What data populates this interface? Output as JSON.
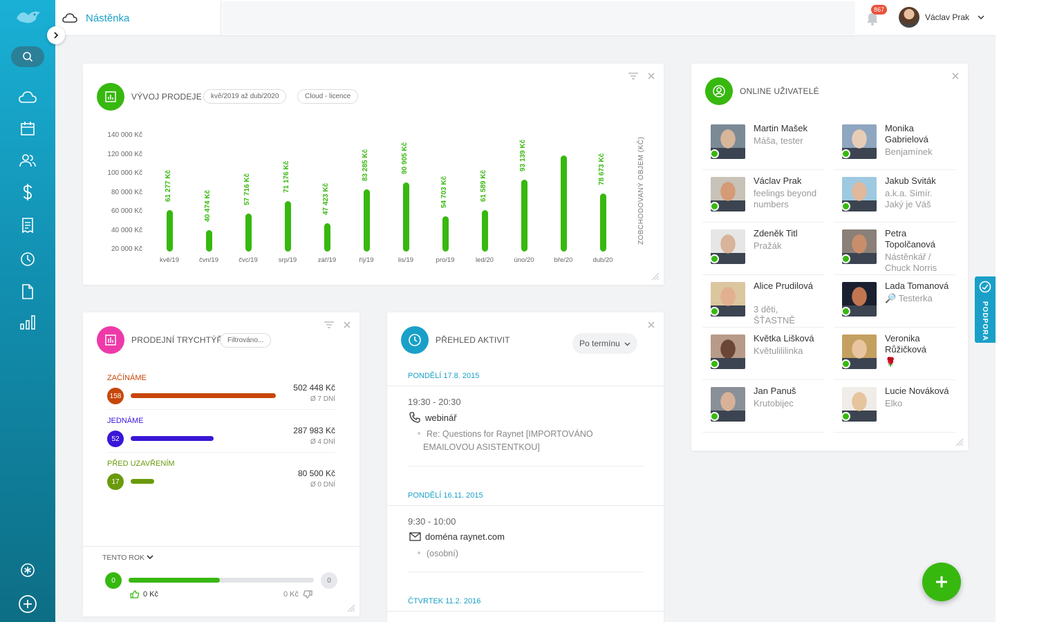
{
  "header": {
    "title": "Nástěnka",
    "notifications": "867",
    "user_name": "Václav Prak"
  },
  "sales": {
    "title": "VÝVOJ PRODEJE",
    "filters": [
      "kvě/2019 až dub/2020",
      "Cloud - licence"
    ]
  },
  "chart_data": {
    "type": "bar",
    "title": "VÝVOJ PRODEJE",
    "ylabel": "ZOBCHODOVANÝ OBJEM (KČ)",
    "ytick_labels": [
      "140 000 Kč",
      "120 000 Kč",
      "100 000 Kč",
      "80 000 Kč",
      "60 000 Kč",
      "40 000 Kč",
      "20 000 Kč"
    ],
    "ylim": [
      0,
      140000
    ],
    "categories": [
      "kvě/19",
      "čvn/19",
      "čvc/19",
      "srp/19",
      "zář/19",
      "říj/19",
      "lis/19",
      "pro/19",
      "led/20",
      "úno/20",
      "bře/20",
      "dub/20"
    ],
    "values": [
      61277,
      40474,
      57716,
      71176,
      47423,
      83285,
      90905,
      54703,
      61589,
      93139,
      119000,
      78673
    ],
    "labels": [
      "61 277 Kč",
      "40 474 Kč",
      "57 716 Kč",
      "71 176 Kč",
      "47 423 Kč",
      "83 285 Kč",
      "90 905 Kč",
      "54 703 Kč",
      "61 589 Kč",
      "93 139 Kč",
      "",
      "78 673 Kč"
    ]
  },
  "funnel": {
    "title": "PRODEJNÍ TRYCHTÝŘ",
    "filter": "Filtrováno...",
    "stages": [
      {
        "name": "ZAČÍNÁME",
        "count": "158",
        "amount": "502 448 Kč",
        "days": "Ø 7 DNÍ",
        "color": "#c7460a",
        "fill": 1.0
      },
      {
        "name": "JEDNÁME",
        "count": "52",
        "amount": "287 983 Kč",
        "days": "Ø 4 DNÍ",
        "color": "#3a16d6",
        "fill": 0.57
      },
      {
        "name": "PŘED UZAVŘENÍM",
        "count": "17",
        "amount": "80 500 Kč",
        "days": "Ø 0 DNÍ",
        "color": "#6a9a0c",
        "fill": 0.16
      }
    ],
    "year_label": "TENTO ROK",
    "won_count": "0",
    "lost_count": "0",
    "won_amount": "0 Kč",
    "lost_amount": "0 Kč"
  },
  "activities": {
    "title": "PŘEHLED AKTIVIT",
    "sort": "Po termínu",
    "days": [
      {
        "date": "PONDĚLÍ 17.8. 2015",
        "time": "19:30 - 20:30",
        "type": "webinář",
        "desc_line1": "Re: Questions for Raynet [IMPORTOVÁNO",
        "desc_line2": "EMAILOVOU ASISTENTKOU]"
      },
      {
        "date": "PONDĚLÍ 16.11. 2015",
        "time": "9:30 - 10:00",
        "type": "doména raynet.com",
        "desc_line1": "(osobní)"
      },
      {
        "date": "ČTVRTEK 11.2. 2016"
      }
    ]
  },
  "online": {
    "title": "ONLINE UŽIVATELÉ",
    "users": [
      {
        "name": "Martin Mašek",
        "sub": [
          "Máša, tester"
        ]
      },
      {
        "name": "Monika Gabrielová",
        "sub": [
          "Benjamínek"
        ]
      },
      {
        "name": "Václav Prak",
        "sub": [
          "feelings beyond",
          "numbers"
        ]
      },
      {
        "name": "Jakub Sviták",
        "sub": [
          "a.k.a. Simír.",
          "Jaký je Váš"
        ]
      },
      {
        "name": "Zdeněk Titl",
        "sub": [
          "Pražák"
        ]
      },
      {
        "name": "Petra Topolčanová",
        "sub": [
          "Nástěnkář /",
          "Chuck Norris"
        ]
      },
      {
        "name": "Alice Prudilová",
        "sub": [
          "3 děti,",
          "ŠŤASTNĚ"
        ]
      },
      {
        "name": "Lada Tomanová",
        "sub": [
          "🔎 Testerka"
        ]
      },
      {
        "name": "Květka Lišková",
        "sub": [
          "Květulililinka"
        ]
      },
      {
        "name": "Veronika Růžičková",
        "sub": [
          "🌹"
        ]
      },
      {
        "name": "Jan Panuš",
        "sub": [
          "Krutobijec"
        ]
      },
      {
        "name": "Lucie Nováková",
        "sub": [
          "Elko"
        ]
      }
    ]
  },
  "support_label": "PODPORA"
}
